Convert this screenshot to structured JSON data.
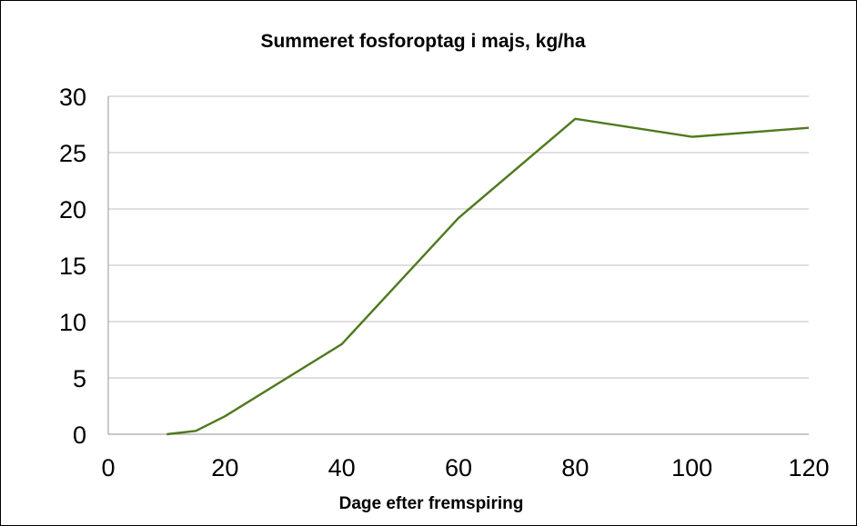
{
  "chart_data": {
    "type": "line",
    "title": "Summeret fosforoptag i majs, kg/ha",
    "xlabel": "Dage efter fremspiring",
    "ylabel": "",
    "xlim": [
      0,
      120
    ],
    "ylim": [
      0,
      30
    ],
    "x_ticks": [
      "0",
      "20",
      "40",
      "60",
      "80",
      "100",
      "120"
    ],
    "y_ticks": [
      "0",
      "5",
      "10",
      "15",
      "20",
      "25",
      "30"
    ],
    "grid": true,
    "legend": "none",
    "series": [
      {
        "color": "#4f7a1e",
        "x": [
          10,
          15,
          20,
          40,
          60,
          80,
          100,
          120
        ],
        "y": [
          0,
          0.3,
          1.6,
          8.0,
          19.2,
          28.0,
          26.4,
          27.2
        ]
      }
    ]
  }
}
